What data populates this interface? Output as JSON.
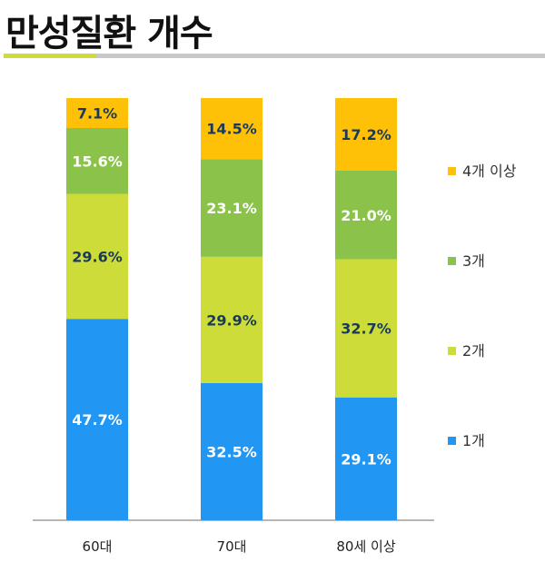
{
  "chart_data": {
    "type": "bar",
    "stacked": true,
    "title": "만성질환 개수",
    "categories": [
      "60대",
      "70대",
      "80세 이상"
    ],
    "series": [
      {
        "name": "1개",
        "color": "#2196f3",
        "label_color": "#ffffff",
        "values": [
          47.7,
          32.5,
          29.1
        ],
        "labels": [
          "47.7%",
          "32.5%",
          "29.1%"
        ]
      },
      {
        "name": "2개",
        "color": "#cddc39",
        "label_color": "#1a3a5c",
        "values": [
          29.6,
          29.9,
          32.7
        ],
        "labels": [
          "29.6%",
          "29.9%",
          "32.7%"
        ]
      },
      {
        "name": "3개",
        "color": "#8bc34a",
        "label_color": "#ffffff",
        "values": [
          15.6,
          23.1,
          21.0
        ],
        "labels": [
          "15.6%",
          "23.1%",
          "21.0%"
        ]
      },
      {
        "name": "4개 이상",
        "color": "#ffc107",
        "label_color": "#1a3a5c",
        "values": [
          7.1,
          14.5,
          17.2
        ],
        "labels": [
          "7.1%",
          "14.5%",
          "17.2%"
        ]
      }
    ],
    "ylim": [
      0,
      100
    ],
    "legend_position": "right",
    "grid": false
  }
}
